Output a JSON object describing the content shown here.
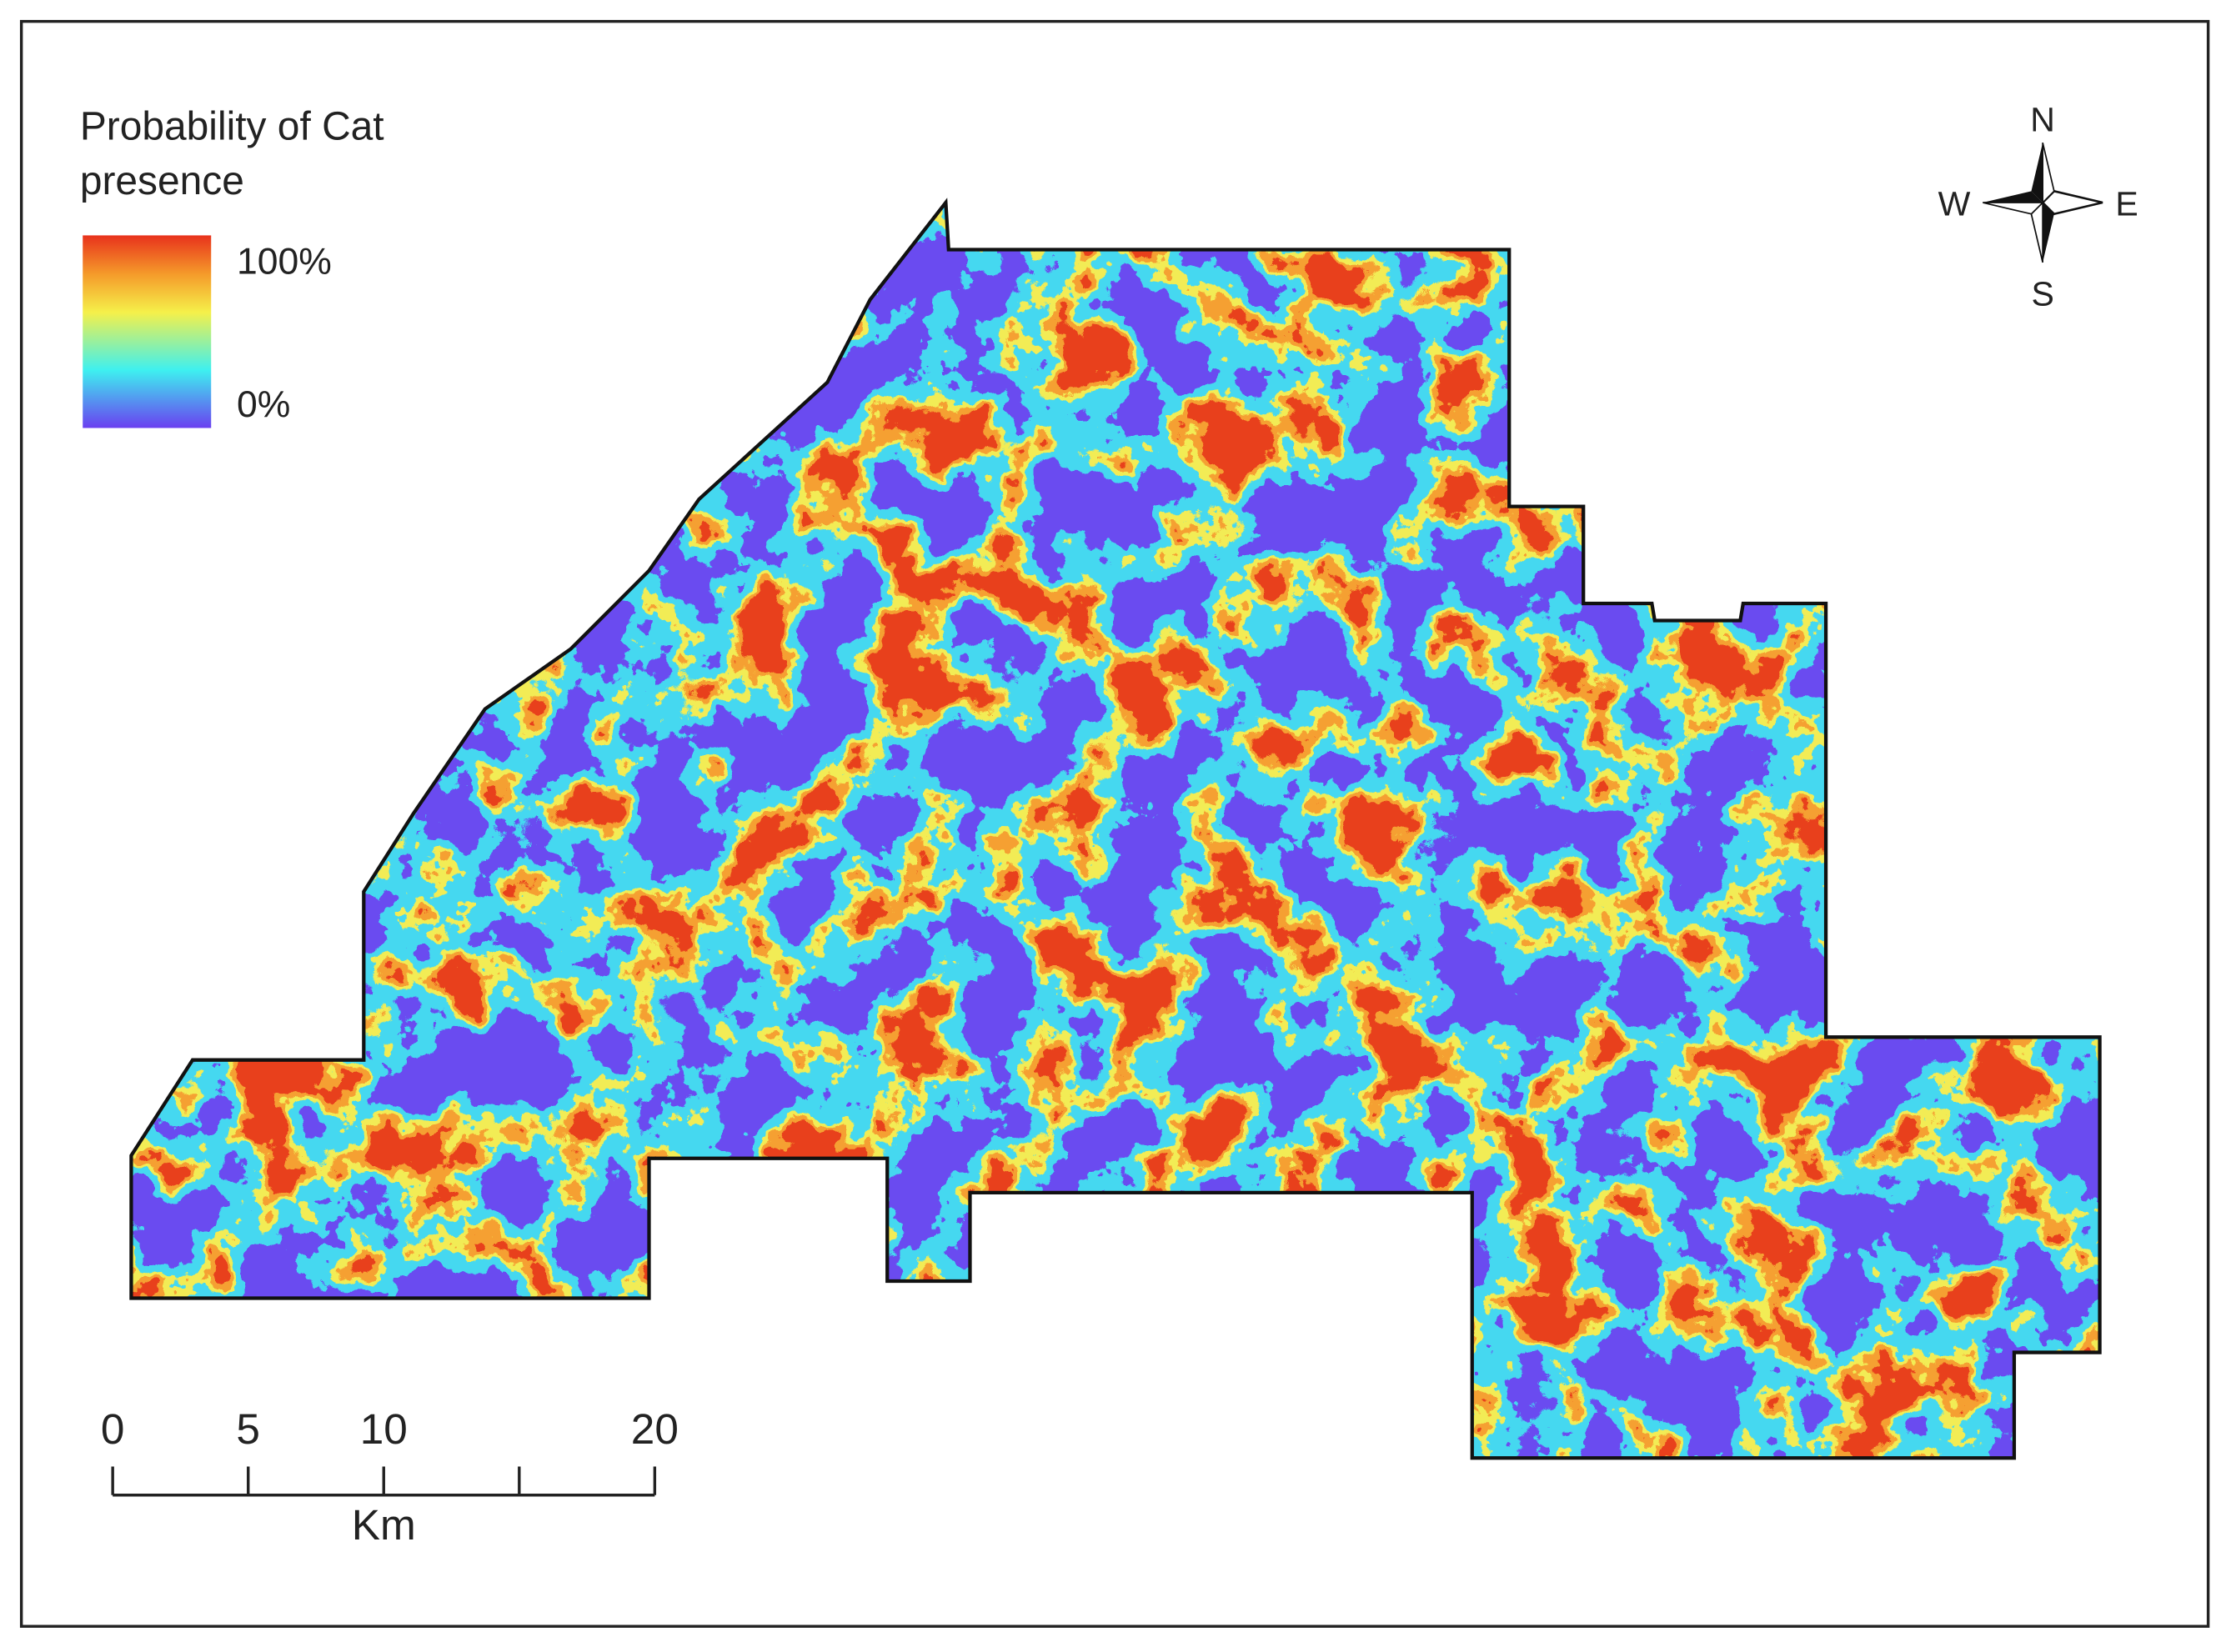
{
  "legend": {
    "title": "Probability of Cat presence",
    "max_label": "100%",
    "min_label": "0%"
  },
  "compass": {
    "north": "N",
    "west": "W",
    "east": "E",
    "south": "S"
  },
  "scale_bar": {
    "ticks": [
      0,
      5,
      10,
      null,
      20
    ],
    "unit": "Km"
  }
}
